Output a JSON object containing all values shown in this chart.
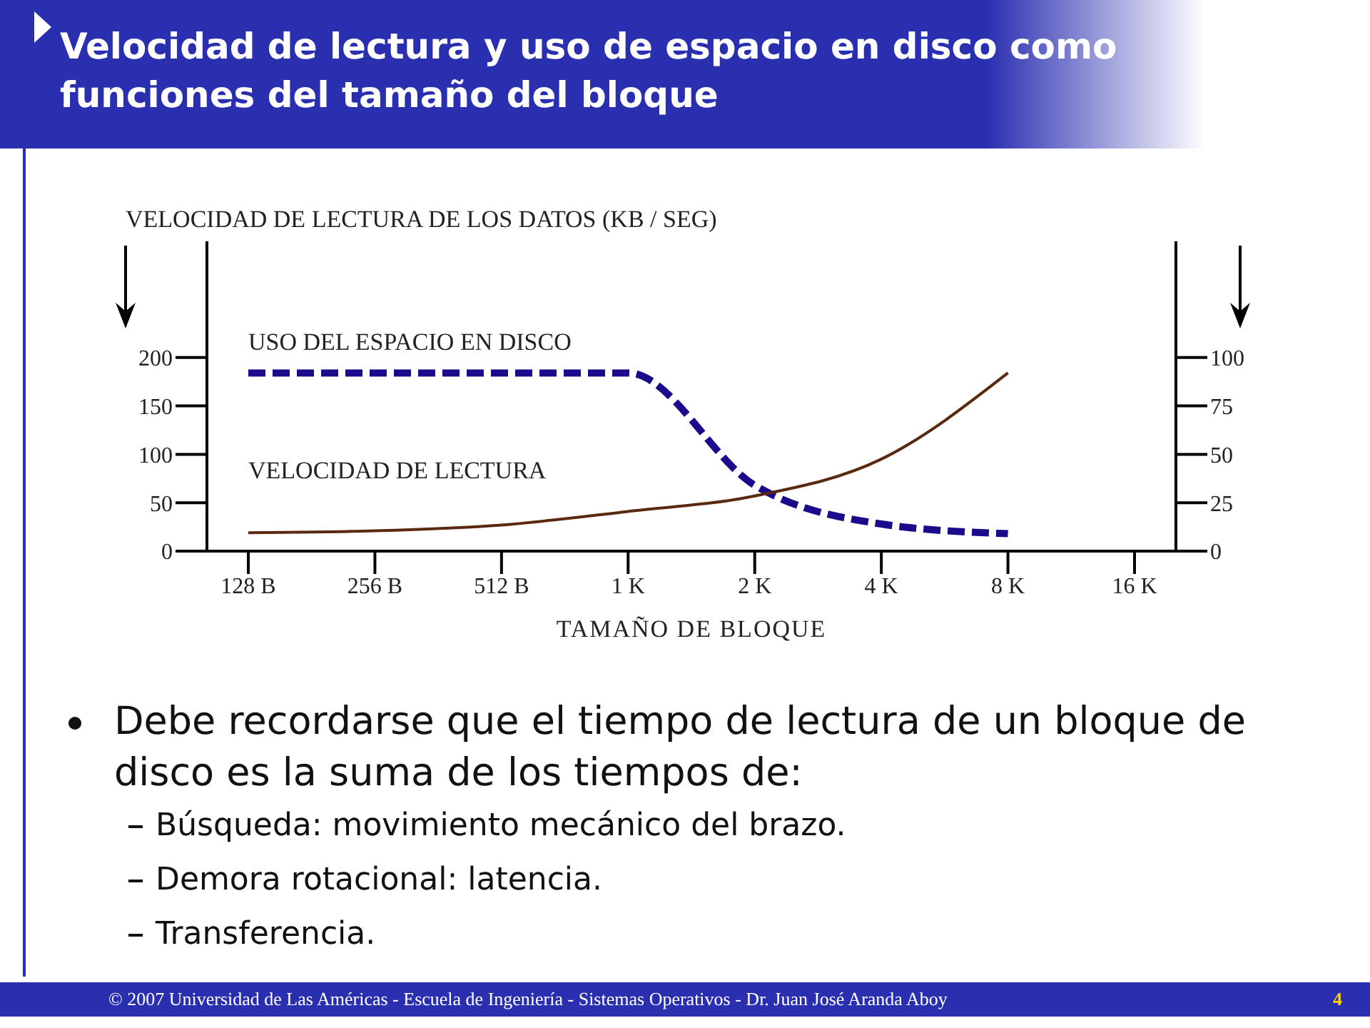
{
  "chart_data": {
    "type": "line",
    "title": "Velocidad de lectura y uso de espacio en disco como funciones del tamaño del bloque",
    "ylabel": "VELOCIDAD DE LECTURA DE LOS DATOS (KB / SEG)",
    "xlabel": "TAMAÑO DE BLOQUE",
    "categories": [
      "128 B",
      "256 B",
      "512 B",
      "1 K",
      "2 K",
      "4 K",
      "8 K",
      "16 K"
    ],
    "series": [
      {
        "name": "USO DEL ESPACIO EN DISCO",
        "color": "#1a0a8c",
        "axis": "y2",
        "line_style": "dashed",
        "values": [
          92,
          92,
          92,
          92,
          34,
          14,
          9,
          null
        ]
      },
      {
        "name": "VELOCIDAD DE LECTURA",
        "color": "#5a2a10",
        "line_style": "solid",
        "values": [
          19,
          21,
          27,
          41,
          57,
          95,
          184,
          null
        ]
      }
    ],
    "ylim": [
      0,
      320
    ],
    "yticks": [
      0,
      50,
      100,
      150,
      200
    ],
    "y2lim": [
      0,
      160
    ],
    "y2ticks": [
      0,
      25,
      50,
      75,
      100
    ],
    "grid": false,
    "legend": false,
    "marker": "none",
    "annotations": [
      "Debe recordarse que el tiempo de lectura de un bloque de disco es la suma de los tiempos de:",
      "Búsqueda: movimiento mecánico del brazo.",
      "Demora rotacional: latencia.",
      "Transferencia.",
      "© 2007 Universidad de Las Américas - Escuela de Ingeniería - Sistemas Operativos - Dr. Juan José Aranda Aboy",
      "4"
    ]
  }
}
